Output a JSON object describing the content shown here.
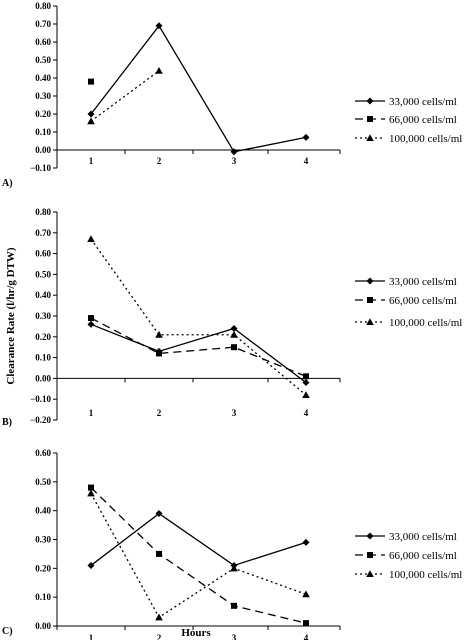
{
  "figure": {
    "ylabel": "Clearance Rate (l/hr/g DTW)",
    "xlabel": "Hours"
  },
  "chart_data": [
    {
      "type": "line",
      "panel_label": "A)",
      "categories": [
        "1",
        "2",
        "3",
        "4"
      ],
      "x": [
        1,
        2,
        3,
        4
      ],
      "ylim": [
        -0.1,
        0.8
      ],
      "yticks": [
        "0.80",
        "0.70",
        "0.60",
        "0.50",
        "0.40",
        "0.30",
        "0.20",
        "0.10",
        "0.00",
        "−0.10"
      ],
      "grid": false,
      "legend_position": "right",
      "series": [
        {
          "name": "33,000 cells/ml",
          "style": "solid",
          "marker": "diamond",
          "values": [
            0.2,
            0.69,
            -0.01,
            0.07
          ]
        },
        {
          "name": "66,000 cells/ml",
          "style": "dashed",
          "marker": "square",
          "values": [
            0.38,
            null,
            null,
            null
          ]
        },
        {
          "name": "100,000 cells/ml",
          "style": "dotted",
          "marker": "triangle",
          "values": [
            0.16,
            0.44,
            null,
            null
          ]
        }
      ]
    },
    {
      "type": "line",
      "panel_label": "B)",
      "categories": [
        "1",
        "2",
        "3",
        "4"
      ],
      "x": [
        1,
        2,
        3,
        4
      ],
      "ylim": [
        -0.2,
        0.8
      ],
      "yticks": [
        "0.80",
        "0.70",
        "0.60",
        "0.50",
        "0.40",
        "0.30",
        "0.20",
        "0.10",
        "0.00",
        "−0.10",
        "−0.20"
      ],
      "grid": false,
      "legend_position": "right",
      "series": [
        {
          "name": "33,000 cells/ml",
          "style": "solid",
          "marker": "diamond",
          "values": [
            0.26,
            0.13,
            0.24,
            -0.02
          ]
        },
        {
          "name": "66,000 cells/ml",
          "style": "dashed",
          "marker": "square",
          "values": [
            0.29,
            0.12,
            0.15,
            0.01
          ]
        },
        {
          "name": "100,000 cells/ml",
          "style": "dotted",
          "marker": "triangle",
          "values": [
            0.67,
            0.21,
            0.21,
            -0.08
          ]
        }
      ]
    },
    {
      "type": "line",
      "panel_label": "C)",
      "categories": [
        "1",
        "2",
        "3",
        "4"
      ],
      "x": [
        1,
        2,
        3,
        4
      ],
      "ylim": [
        0,
        0.6
      ],
      "yticks": [
        "0.60",
        "0.50",
        "0.40",
        "0.30",
        "0.20",
        "0.10",
        "0.00"
      ],
      "grid": false,
      "legend_position": "right",
      "series": [
        {
          "name": "33,000 cells/ml",
          "style": "solid",
          "marker": "diamond",
          "values": [
            0.21,
            0.39,
            0.21,
            0.29
          ]
        },
        {
          "name": "66,000 cells/ml",
          "style": "dashed",
          "marker": "square",
          "values": [
            0.48,
            0.25,
            0.07,
            0.01
          ]
        },
        {
          "name": "100,000 cells/ml",
          "style": "dotted",
          "marker": "triangle",
          "values": [
            0.46,
            0.03,
            0.2,
            0.11
          ]
        }
      ]
    }
  ]
}
